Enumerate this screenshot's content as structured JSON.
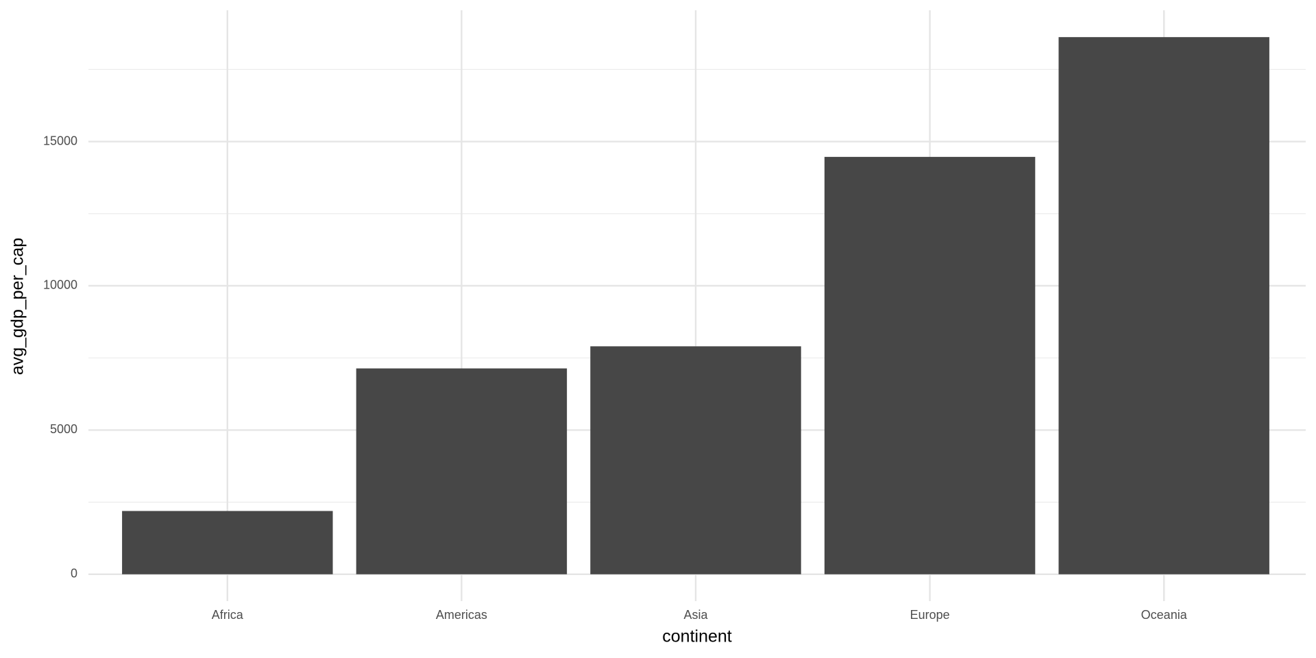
{
  "chart_data": {
    "type": "bar",
    "x_label": "continent",
    "y_label": "avg_gdp_per_cap",
    "categories": [
      "Africa",
      "Americas",
      "Asia",
      "Europe",
      "Oceania"
    ],
    "values": [
      2193.75,
      7136.11,
      7902.15,
      14469.48,
      18621.61
    ],
    "color": "#474747",
    "ylim": [
      -931,
      19552
    ],
    "yticks": [
      0,
      5000,
      10000,
      15000
    ],
    "y_minor_ticks": [
      2500,
      7500,
      12500,
      17500
    ],
    "grid": true
  }
}
